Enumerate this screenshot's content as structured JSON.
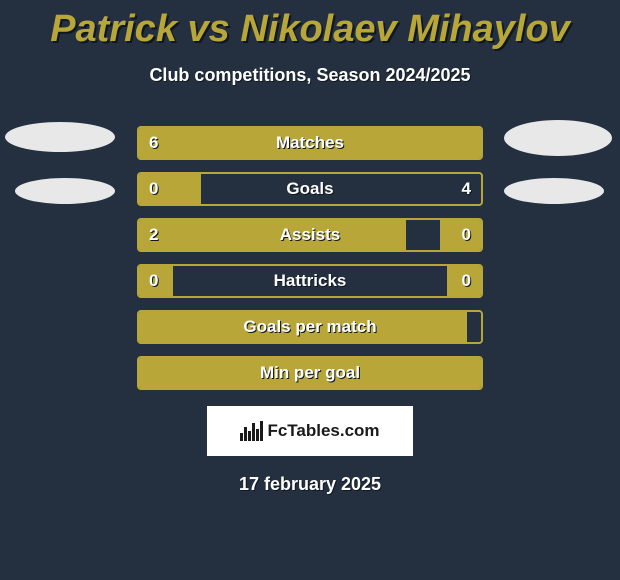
{
  "title": "Patrick vs Nikolaev Mihaylov",
  "subtitle": "Club competitions, Season 2024/2025",
  "footer_date": "17 february 2025",
  "logo_text": "FcTables.com",
  "colors": {
    "background": "#243040",
    "accent": "#b8a738",
    "text": "#ffffff",
    "title": "#b8a738",
    "logo_bg": "#ffffff",
    "logo_text": "#1a1a1a"
  },
  "bars": [
    {
      "label": "Matches",
      "left_val": "6",
      "right_val": "",
      "left_pct": 100,
      "right_pct": 0,
      "show_left": true,
      "show_right": false
    },
    {
      "label": "Goals",
      "left_val": "0",
      "right_val": "4",
      "left_pct": 18,
      "right_pct": 0,
      "show_left": true,
      "show_right": true
    },
    {
      "label": "Assists",
      "left_val": "2",
      "right_val": "0",
      "left_pct": 78,
      "right_pct": 12,
      "show_left": true,
      "show_right": true
    },
    {
      "label": "Hattricks",
      "left_val": "0",
      "right_val": "0",
      "left_pct": 10,
      "right_pct": 10,
      "show_left": true,
      "show_right": true
    },
    {
      "label": "Goals per match",
      "left_val": "",
      "right_val": "",
      "left_pct": 96,
      "right_pct": 0,
      "show_left": false,
      "show_right": false
    },
    {
      "label": "Min per goal",
      "left_val": "",
      "right_val": "",
      "left_pct": 100,
      "right_pct": 0,
      "show_left": false,
      "show_right": false
    }
  ]
}
